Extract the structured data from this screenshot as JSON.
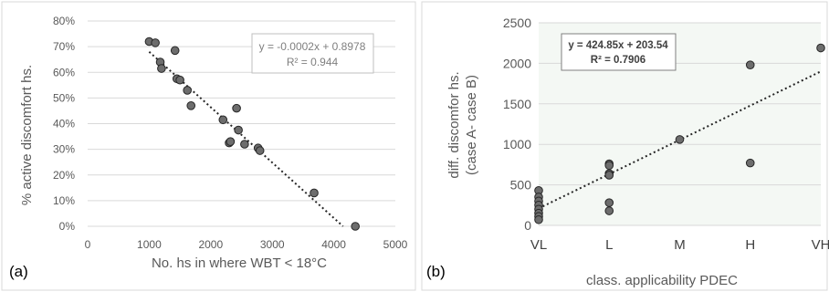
{
  "panels": [
    {
      "label": "(a)"
    },
    {
      "label": "(b)"
    }
  ],
  "chart_data": [
    {
      "type": "scatter",
      "xlabel": "No. hs in where WBT < 18°C",
      "ylabel": "% active discomfort hs.",
      "xlim": [
        0,
        5000
      ],
      "ylim": [
        0,
        0.8
      ],
      "x_ticks": [
        0,
        1000,
        2000,
        3000,
        4000,
        5000
      ],
      "x_tick_labels": [
        "0",
        "1000",
        "2000",
        "3000",
        "4000",
        "5000"
      ],
      "y_ticks": [
        0,
        0.1,
        0.2,
        0.3,
        0.4,
        0.5,
        0.6,
        0.7,
        0.8
      ],
      "y_tick_labels": [
        "0%",
        "10%",
        "20%",
        "30%",
        "40%",
        "50%",
        "60%",
        "70%",
        "80%"
      ],
      "grid": "horizontal",
      "points": [
        [
          1000,
          0.72
        ],
        [
          1100,
          0.715
        ],
        [
          1180,
          0.64
        ],
        [
          1200,
          0.615
        ],
        [
          1420,
          0.685
        ],
        [
          1450,
          0.575
        ],
        [
          1500,
          0.57
        ],
        [
          1620,
          0.53
        ],
        [
          1680,
          0.47
        ],
        [
          2200,
          0.415
        ],
        [
          2300,
          0.325
        ],
        [
          2320,
          0.33
        ],
        [
          2420,
          0.46
        ],
        [
          2450,
          0.375
        ],
        [
          2550,
          0.32
        ],
        [
          2770,
          0.305
        ],
        [
          2800,
          0.295
        ],
        [
          3680,
          0.13
        ],
        [
          4350,
          0.0
        ]
      ],
      "trendline": {
        "x": [
          1000,
          4150
        ],
        "y": [
          0.68,
          0.0
        ]
      },
      "equation": "y = -0.0002x + 0.8978",
      "r2": "R² = 0.944",
      "colors": {
        "marker": "#6d6d6d",
        "marker_edge": "#262626",
        "trendline": "#262626",
        "box_border": "#bfbfbf",
        "box_text": "#7f7f7f"
      }
    },
    {
      "type": "scatter",
      "xlabel": "class. applicability PDEC",
      "ylabel": "diff. discomfor hs.",
      "ylabel2": "(case A- case B)",
      "categories": [
        "VL",
        "L",
        "M",
        "H",
        "VH"
      ],
      "xlim": [
        1,
        5
      ],
      "ylim": [
        0,
        2500
      ],
      "y_ticks": [
        0,
        500,
        1000,
        1500,
        2000,
        2500
      ],
      "y_tick_labels": [
        "0",
        "500",
        "1000",
        "1500",
        "2000",
        "2500"
      ],
      "grid": "horizontal",
      "points": [
        [
          1,
          430
        ],
        [
          1,
          350
        ],
        [
          1,
          300
        ],
        [
          1,
          250
        ],
        [
          1,
          200
        ],
        [
          1,
          150
        ],
        [
          1,
          110
        ],
        [
          1,
          70
        ],
        [
          2,
          760
        ],
        [
          2,
          740
        ],
        [
          2,
          640
        ],
        [
          2,
          620
        ],
        [
          2,
          280
        ],
        [
          2,
          180
        ],
        [
          3,
          1060
        ],
        [
          4,
          1980
        ],
        [
          4,
          770
        ],
        [
          5,
          2190
        ]
      ],
      "trendline": {
        "x": [
          1,
          5
        ],
        "y": [
          210,
          1900
        ]
      },
      "equation": "y = 424.85x + 203.54",
      "r2": "R² = 0.7906",
      "colors": {
        "marker": "#6d6d6d",
        "marker_edge": "#262626",
        "trendline": "#262626",
        "box_border": "#7f7f7f",
        "box_text": "#404040",
        "plot_bg": "#f4f8f4"
      }
    }
  ]
}
